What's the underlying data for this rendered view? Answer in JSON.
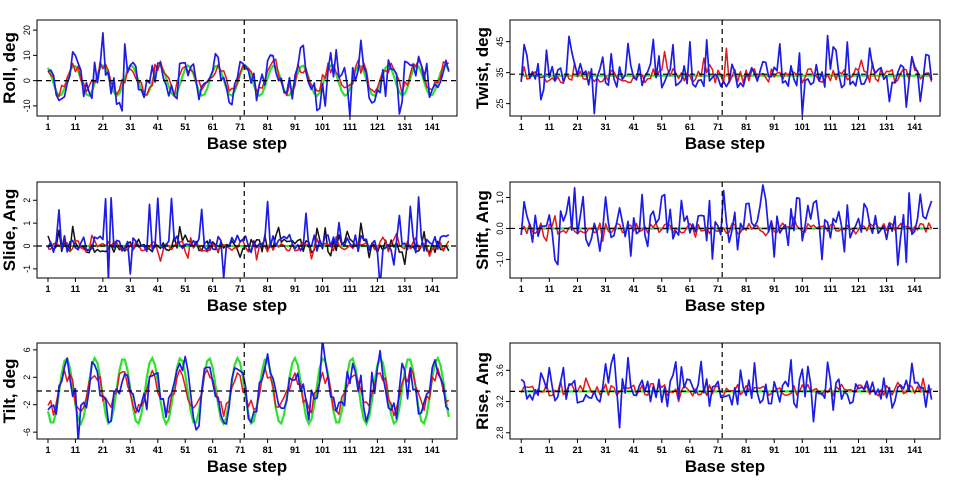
{
  "chart_data": [
    {
      "id": "roll",
      "type": "line",
      "ylabel": "Roll, deg",
      "xlabel": "Base step",
      "yticks": [
        "-10",
        "0",
        "10",
        "20"
      ],
      "ytick_values": [
        -10,
        0,
        10,
        20
      ],
      "ylim": [
        -14,
        24
      ],
      "xlim": [
        -3,
        150
      ],
      "ref_y": 0,
      "wave": {
        "color": "#2fe02f",
        "baseline": 0,
        "amplitude": 6,
        "period": 10.4,
        "phase": 1.5
      },
      "series": [
        {
          "name": "red",
          "color": "#e8151b",
          "seed": 11,
          "baseline": 1,
          "amplitude": 5,
          "noise": 3,
          "spike": 0,
          "spike_prob": 0
        },
        {
          "name": "blue",
          "color": "#1c1ce6",
          "seed": 23,
          "baseline": 1,
          "amplitude": 6,
          "noise": 5,
          "spike": 8,
          "spike_prob": 0.18
        }
      ]
    },
    {
      "id": "twist",
      "type": "line",
      "ylabel": "Twist, deg",
      "xlabel": "Base step",
      "yticks": [
        "25",
        "35",
        "45"
      ],
      "ytick_values": [
        25,
        35,
        45
      ],
      "ylim": [
        21,
        52
      ],
      "xlim": [
        -3,
        150
      ],
      "ref_y": 34.5,
      "wave": {
        "color": "#2fe02f",
        "baseline": 34,
        "amplitude": 0,
        "period": 10.4,
        "phase": 0
      },
      "series": [
        {
          "name": "red",
          "color": "#e8151b",
          "seed": 37,
          "baseline": 34,
          "amplitude": 0,
          "noise": 2.5,
          "spike": 6,
          "spike_prob": 0.05
        },
        {
          "name": "blue",
          "color": "#1c1ce6",
          "seed": 41,
          "baseline": 34,
          "amplitude": 0,
          "noise": 4,
          "spike": 9,
          "spike_prob": 0.22
        }
      ]
    },
    {
      "id": "slide",
      "type": "line",
      "ylabel": "Slide, Ang",
      "xlabel": "Base step",
      "yticks": [
        "-1",
        "0",
        "1",
        "2"
      ],
      "ytick_values": [
        -1,
        0,
        1,
        2
      ],
      "ylim": [
        -1.4,
        2.8
      ],
      "xlim": [
        -3,
        150
      ],
      "ref_y": 0,
      "wave": {
        "color": "#2fe02f",
        "baseline": 0,
        "amplitude": 0,
        "period": 10.4,
        "phase": 0
      },
      "series": [
        {
          "name": "black",
          "color": "#111111",
          "seed": 53,
          "baseline": 0,
          "amplitude": 0,
          "noise": 0.3,
          "spike": 0.6,
          "spike_prob": 0.1
        },
        {
          "name": "red",
          "color": "#e8151b",
          "seed": 59,
          "baseline": 0,
          "amplitude": 0,
          "noise": 0.25,
          "spike": 0.5,
          "spike_prob": 0.08
        },
        {
          "name": "blue",
          "color": "#1c1ce6",
          "seed": 61,
          "baseline": 0.1,
          "amplitude": 0,
          "noise": 0.4,
          "spike": 1.6,
          "spike_prob": 0.16
        }
      ]
    },
    {
      "id": "shift",
      "type": "line",
      "ylabel": "Shift, Ang",
      "xlabel": "Base step",
      "yticks": [
        "-1.0",
        "0.0",
        "1.0"
      ],
      "ytick_values": [
        -1.0,
        0.0,
        1.0
      ],
      "ylim": [
        -1.6,
        1.5
      ],
      "xlim": [
        -3,
        150
      ],
      "ref_y": 0,
      "wave": {
        "color": "#2fe02f",
        "baseline": 0,
        "amplitude": 0,
        "period": 10.4,
        "phase": 0
      },
      "series": [
        {
          "name": "red",
          "color": "#e8151b",
          "seed": 67,
          "baseline": 0,
          "amplitude": 0,
          "noise": 0.18,
          "spike": 0.3,
          "spike_prob": 0.08
        },
        {
          "name": "blue",
          "color": "#1c1ce6",
          "seed": 71,
          "baseline": 0,
          "amplitude": 0,
          "noise": 0.45,
          "spike": 0.9,
          "spike_prob": 0.3
        }
      ]
    },
    {
      "id": "tilt",
      "type": "line",
      "ylabel": "Tilt, deg",
      "xlabel": "Base step",
      "yticks": [
        "-6",
        "-2",
        "2",
        "6"
      ],
      "ytick_values": [
        -6,
        -2,
        2,
        6
      ],
      "ylim": [
        -7,
        7
      ],
      "xlim": [
        -3,
        150
      ],
      "ref_y": 0,
      "wave": {
        "color": "#2fe02f",
        "baseline": 0,
        "amplitude": 4.8,
        "period": 10.4,
        "phase": 3.2
      },
      "series": [
        {
          "name": "red",
          "color": "#e8151b",
          "seed": 79,
          "baseline": 0,
          "amplitude": 2.5,
          "noise": 1.2,
          "spike": 0,
          "spike_prob": 0
        },
        {
          "name": "blue",
          "color": "#1c1ce6",
          "seed": 83,
          "baseline": 0,
          "amplitude": 3,
          "noise": 2,
          "spike": 2.5,
          "spike_prob": 0.2
        }
      ]
    },
    {
      "id": "rise",
      "type": "line",
      "ylabel": "Rise, Ang",
      "xlabel": "Base step",
      "yticks": [
        "2.8",
        "3.2",
        "3.6"
      ],
      "ytick_values": [
        2.8,
        3.2,
        3.6
      ],
      "ylim": [
        2.72,
        3.95
      ],
      "xlim": [
        -3,
        150
      ],
      "ref_y": 3.33,
      "wave": {
        "color": "#2fe02f",
        "baseline": 3.33,
        "amplitude": 0,
        "period": 10.4,
        "phase": 0
      },
      "series": [
        {
          "name": "red",
          "color": "#e8151b",
          "seed": 89,
          "baseline": 3.35,
          "amplitude": 0,
          "noise": 0.08,
          "spike": 0.1,
          "spike_prob": 0.08
        },
        {
          "name": "blue",
          "color": "#1c1ce6",
          "seed": 97,
          "baseline": 3.33,
          "amplitude": 0,
          "noise": 0.16,
          "spike": 0.3,
          "spike_prob": 0.2
        }
      ]
    }
  ],
  "shared": {
    "xticks": [
      "1",
      "11",
      "21",
      "31",
      "41",
      "51",
      "61",
      "71",
      "81",
      "91",
      "101",
      "111",
      "121",
      "131",
      "141"
    ],
    "xtick_values": [
      1,
      11,
      21,
      31,
      41,
      51,
      61,
      71,
      81,
      91,
      101,
      111,
      121,
      131,
      141
    ],
    "n_steps": 147,
    "divider_x": 72.5
  }
}
